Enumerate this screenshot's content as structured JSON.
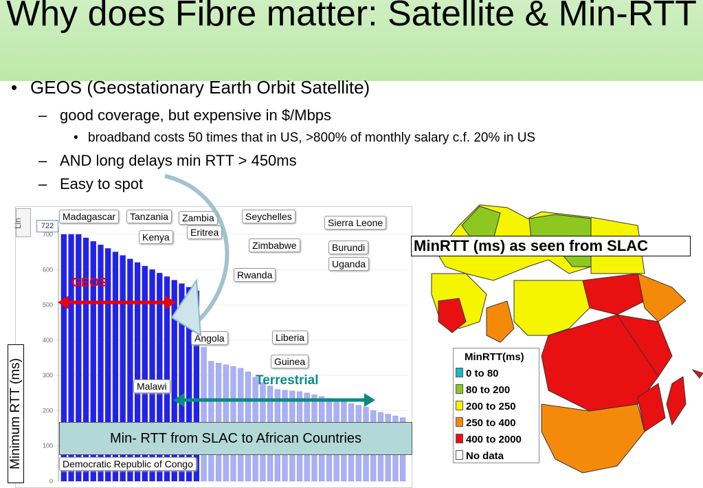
{
  "title": "Why does Fibre matter: Satellite & Min-RTT",
  "bullets": {
    "b1": "GEOS (Geostationary Earth Orbit Satellite)",
    "b1_sub1": "good coverage, but expensive in $/Mbps",
    "b1_sub1_sub": "broadband costs 50 times that in US, >800% of monthly salary c.f. 20% in US",
    "b1_sub2": "AND long delays min RTT > 450ms",
    "b1_sub3": "Easy to spot"
  },
  "chart": {
    "ylabel": "Minimum RTT (ms)",
    "y_ticks": [
      "0",
      "100",
      "200",
      "300",
      "400",
      "500",
      "600",
      "700"
    ],
    "value_box": "722",
    "side_label": "Lin",
    "geos_label": "GEOS",
    "terrestrial_label": "Terrestrial",
    "caption": "Min- RTT from SLAC to African Countries",
    "country_tags": [
      "Madagascar",
      "Tanzania",
      "Zambia",
      "Seychelles",
      "Sierra Leone",
      "Kenya",
      "Eritrea",
      "Zimbabwe",
      "Burundi",
      "Uganda",
      "Rwanda",
      "Liberia",
      "Angola",
      "Guinea",
      "Malawi",
      "Democratic Republic of Congo"
    ]
  },
  "chart_data": {
    "type": "bar",
    "ylabel": "Minimum RTT (ms)",
    "ylim": [
      0,
      700
    ],
    "values": [
      722,
      710,
      700,
      690,
      680,
      670,
      660,
      650,
      640,
      630,
      620,
      610,
      600,
      590,
      580,
      570,
      560,
      550,
      540,
      380,
      340,
      335,
      330,
      325,
      320,
      310,
      295,
      280,
      270,
      260,
      258,
      256,
      254,
      250,
      245,
      240,
      235,
      230,
      225,
      220,
      215,
      210,
      200,
      195,
      190,
      185,
      180
    ],
    "colors": {
      "geos": "#2222ee",
      "terrestrial": "#aab0f5"
    }
  },
  "map": {
    "title": "MinRTT (ms) as seen from SLAC",
    "legend_title": "MinRTT(ms)",
    "legend": [
      {
        "label": "0 to 80",
        "color": "#18b8c8"
      },
      {
        "label": "80 to 200",
        "color": "#8cc820"
      },
      {
        "label": "200 to 250",
        "color": "#f5f500"
      },
      {
        "label": "250 to 400",
        "color": "#f58a0a"
      },
      {
        "label": "400 to 2000",
        "color": "#e81010"
      },
      {
        "label": "No data",
        "color": "#ffffff"
      }
    ]
  }
}
